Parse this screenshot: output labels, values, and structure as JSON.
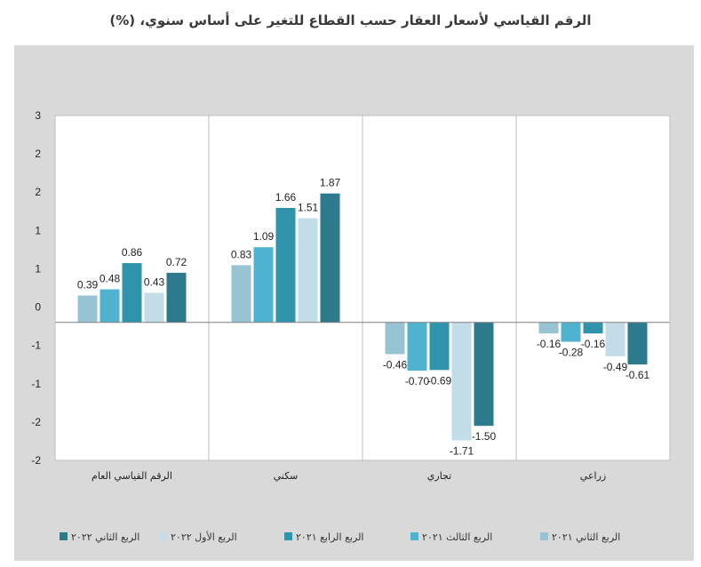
{
  "title": "الرقم القياسي لأسعار العقار حسب القطاع للتغير على أساس سنوي، (%)",
  "chart_data": {
    "type": "bar",
    "title": "الرقم القياسي لأسعار العقار حسب القطاع للتغير على أساس سنوي، (%)",
    "categories": [
      "الرقم القياسي العام",
      "سكني",
      "تجاري",
      "زراعي"
    ],
    "series": [
      {
        "name": "الربع الثاني ٢٠٢١",
        "color": "#97c3d2",
        "values": [
          0.39,
          0.83,
          -0.46,
          -0.16
        ]
      },
      {
        "name": "الربع الثالث ٢٠٢١",
        "color": "#4fb3cf",
        "values": [
          0.48,
          1.09,
          -0.7,
          -0.28
        ]
      },
      {
        "name": "الربع الرابع ٢٠٢١",
        "color": "#2f93ab",
        "values": [
          0.86,
          1.66,
          -0.69,
          -0.16
        ]
      },
      {
        "name": "الربع الأول ٢٠٢٢",
        "color": "#c2dde7",
        "values": [
          0.43,
          1.51,
          -1.71,
          -0.49
        ]
      },
      {
        "name": "الربع الثاني ٢٠٢٢",
        "color": "#2c7a8c",
        "values": [
          0.72,
          1.87,
          -1.5,
          -0.61
        ]
      }
    ],
    "ylim": [
      -2,
      3
    ],
    "ytick_labels": [
      "3",
      "2",
      "2",
      "1",
      "1",
      "0",
      "-1",
      "-1",
      "-2",
      "-2"
    ],
    "grid": false,
    "legend_position": "bottom"
  }
}
